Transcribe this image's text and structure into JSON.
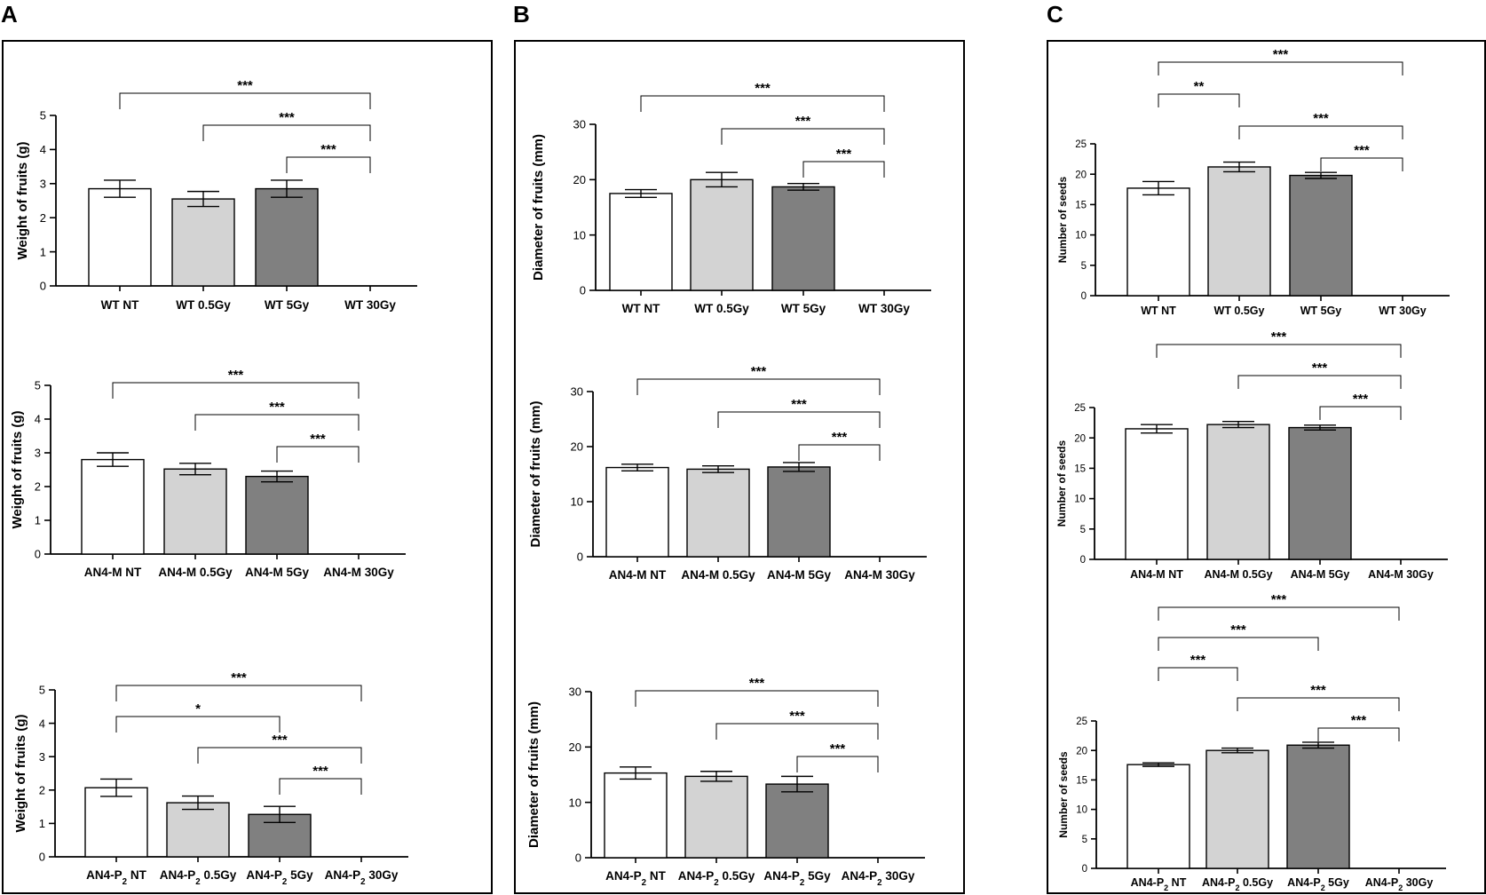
{
  "panels": [
    {
      "letter": "A"
    },
    {
      "letter": "B"
    },
    {
      "letter": "C"
    }
  ],
  "colors": {
    "bar_fills": [
      "#ffffff",
      "#d3d3d3",
      "#808080",
      "#ffffff"
    ],
    "ink": "#000000",
    "bracket": "#000000"
  },
  "chart_data": [
    {
      "panel": "A",
      "type": "bar",
      "ylabel": "Weight of fruits  (g)",
      "ylim": [
        0,
        5
      ],
      "yticks": [
        0,
        1,
        2,
        3,
        4,
        5
      ],
      "categories": [
        "WT NT",
        "WT 0.5Gy",
        "WT 5Gy",
        "WT 30Gy"
      ],
      "values": [
        2.85,
        2.55,
        2.85,
        0
      ],
      "errors": [
        0.25,
        0.22,
        0.25,
        0
      ],
      "significance": [
        {
          "from": 0,
          "to": 3,
          "label": "***",
          "level": 0
        },
        {
          "from": 1,
          "to": 3,
          "label": "***",
          "level": 1
        },
        {
          "from": 2,
          "to": 3,
          "label": "***",
          "level": 2
        }
      ]
    },
    {
      "panel": "A",
      "type": "bar",
      "ylabel": "Weight of fruits  (g)",
      "ylim": [
        0,
        5
      ],
      "yticks": [
        0,
        1,
        2,
        3,
        4,
        5
      ],
      "categories": [
        "AN4-M NT",
        "AN4-M 0.5Gy",
        "AN4-M 5Gy",
        "AN4-M 30Gy"
      ],
      "values": [
        2.8,
        2.52,
        2.3,
        0
      ],
      "errors": [
        0.2,
        0.17,
        0.16,
        0
      ],
      "significance": [
        {
          "from": 0,
          "to": 3,
          "label": "***",
          "level": 0
        },
        {
          "from": 1,
          "to": 3,
          "label": "***",
          "level": 1
        },
        {
          "from": 2,
          "to": 3,
          "label": "***",
          "level": 2
        }
      ]
    },
    {
      "panel": "A",
      "type": "bar",
      "ylabel": "Weight of fruits  (g)",
      "ylim": [
        0,
        5
      ],
      "yticks": [
        0,
        1,
        2,
        3,
        4,
        5
      ],
      "categories": [
        "AN4-P2 NT",
        "AN4-P2 0.5Gy",
        "AN4-P2 5Gy",
        "AN4-P2 30Gy"
      ],
      "values": [
        2.07,
        1.62,
        1.27,
        0
      ],
      "errors": [
        0.26,
        0.2,
        0.24,
        0
      ],
      "significance": [
        {
          "from": 0,
          "to": 3,
          "label": "***",
          "level": 0
        },
        {
          "from": 0,
          "to": 2,
          "label": "*",
          "level": 1
        },
        {
          "from": 1,
          "to": 3,
          "label": "***",
          "level": 2
        },
        {
          "from": 2,
          "to": 3,
          "label": "***",
          "level": 3
        }
      ]
    },
    {
      "panel": "B",
      "type": "bar",
      "ylabel": "Diameter of fruits (mm)",
      "ylim": [
        0,
        30
      ],
      "yticks": [
        0,
        10,
        20,
        30
      ],
      "categories": [
        "WT NT",
        "WT 0.5Gy",
        "WT 5Gy",
        "WT 30Gy"
      ],
      "values": [
        17.5,
        20.0,
        18.7,
        0
      ],
      "errors": [
        0.7,
        1.3,
        0.6,
        0
      ],
      "significance": [
        {
          "from": 0,
          "to": 3,
          "label": "***",
          "level": 0
        },
        {
          "from": 1,
          "to": 3,
          "label": "***",
          "level": 1
        },
        {
          "from": 2,
          "to": 3,
          "label": "***",
          "level": 2
        }
      ]
    },
    {
      "panel": "B",
      "type": "bar",
      "ylabel": "Diameter of fruits (mm)",
      "ylim": [
        0,
        30
      ],
      "yticks": [
        0,
        10,
        20,
        30
      ],
      "categories": [
        "AN4-M NT",
        "AN4-M 0.5Gy",
        "AN4-M 5Gy",
        "AN4-M 30Gy"
      ],
      "values": [
        16.2,
        15.9,
        16.3,
        0
      ],
      "errors": [
        0.6,
        0.6,
        0.8,
        0
      ],
      "significance": [
        {
          "from": 0,
          "to": 3,
          "label": "***",
          "level": 0
        },
        {
          "from": 1,
          "to": 3,
          "label": "***",
          "level": 1
        },
        {
          "from": 2,
          "to": 3,
          "label": "***",
          "level": 2
        }
      ]
    },
    {
      "panel": "B",
      "type": "bar",
      "ylabel": "Diameter of fruits (mm)",
      "ylim": [
        0,
        30
      ],
      "yticks": [
        0,
        10,
        20,
        30
      ],
      "categories": [
        "AN4-P2 NT",
        "AN4-P2 0.5Gy",
        "AN4-P2 5Gy",
        "AN4-P2 30Gy"
      ],
      "values": [
        15.3,
        14.7,
        13.3,
        0
      ],
      "errors": [
        1.1,
        0.9,
        1.4,
        0
      ],
      "significance": [
        {
          "from": 0,
          "to": 3,
          "label": "***",
          "level": 0
        },
        {
          "from": 1,
          "to": 3,
          "label": "***",
          "level": 1
        },
        {
          "from": 2,
          "to": 3,
          "label": "***",
          "level": 2
        }
      ]
    },
    {
      "panel": "C",
      "type": "bar",
      "ylabel": "Number of seeds",
      "ylim": [
        0,
        25
      ],
      "yticks": [
        0,
        5,
        10,
        15,
        20,
        25
      ],
      "categories": [
        "WT NT",
        "WT 0.5Gy",
        "WT 5Gy",
        "WT 30Gy"
      ],
      "values": [
        17.7,
        21.2,
        19.8,
        0
      ],
      "errors": [
        1.1,
        0.8,
        0.5,
        0
      ],
      "significance": [
        {
          "from": 0,
          "to": 3,
          "label": "***",
          "level": 0
        },
        {
          "from": 0,
          "to": 1,
          "label": "**",
          "level": 1
        },
        {
          "from": 1,
          "to": 3,
          "label": "***",
          "level": 2
        },
        {
          "from": 2,
          "to": 3,
          "label": "***",
          "level": 3
        }
      ]
    },
    {
      "panel": "C",
      "type": "bar",
      "ylabel": "Number of seeds",
      "ylim": [
        0,
        25
      ],
      "yticks": [
        0,
        5,
        10,
        15,
        20,
        25
      ],
      "categories": [
        "AN4-M NT",
        "AN4-M 0.5Gy",
        "AN4-M 5Gy",
        "AN4-M 30Gy"
      ],
      "values": [
        21.5,
        22.2,
        21.7,
        0
      ],
      "errors": [
        0.7,
        0.5,
        0.4,
        0
      ],
      "significance": [
        {
          "from": 0,
          "to": 3,
          "label": "***",
          "level": 0
        },
        {
          "from": 1,
          "to": 3,
          "label": "***",
          "level": 1
        },
        {
          "from": 2,
          "to": 3,
          "label": "***",
          "level": 2
        }
      ]
    },
    {
      "panel": "C",
      "type": "bar",
      "ylabel": "Number of seeds",
      "ylim": [
        0,
        25
      ],
      "yticks": [
        0,
        5,
        10,
        15,
        20,
        25
      ],
      "categories": [
        "AN4-P2 NT",
        "AN4-P2 0.5Gy",
        "AN4-P2 5Gy",
        "AN4-P2 30Gy"
      ],
      "values": [
        17.6,
        20.0,
        20.9,
        0
      ],
      "errors": [
        0.3,
        0.4,
        0.5,
        0
      ],
      "significance": [
        {
          "from": 0,
          "to": 3,
          "label": "***",
          "level": 0
        },
        {
          "from": 0,
          "to": 2,
          "label": "***",
          "level": 1
        },
        {
          "from": 0,
          "to": 1,
          "label": "***",
          "level": 2
        },
        {
          "from": 1,
          "to": 3,
          "label": "***",
          "level": 3
        },
        {
          "from": 2,
          "to": 3,
          "label": "***",
          "level": 4
        }
      ]
    }
  ]
}
